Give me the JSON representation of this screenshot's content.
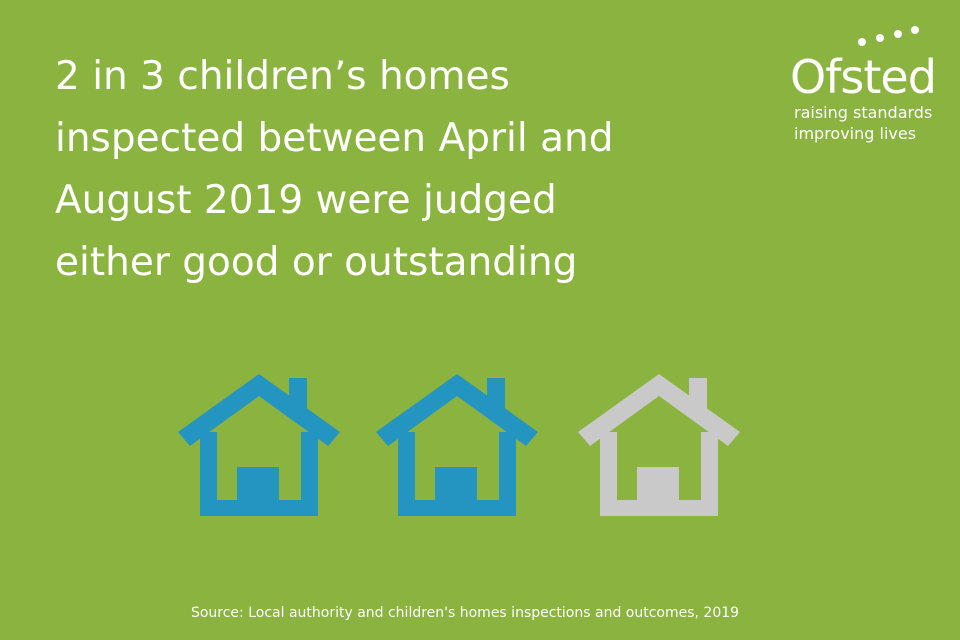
{
  "headline": [
    "2 in 3 children’s homes",
    "inspected between April and",
    "August 2019 were judged",
    "either good or outstanding"
  ],
  "logo": {
    "name": "Ofsted",
    "tagline": [
      "raising standards",
      "improving lives"
    ]
  },
  "source": "Source: Local authority and children's homes inspections and outcomes, 2019"
}
